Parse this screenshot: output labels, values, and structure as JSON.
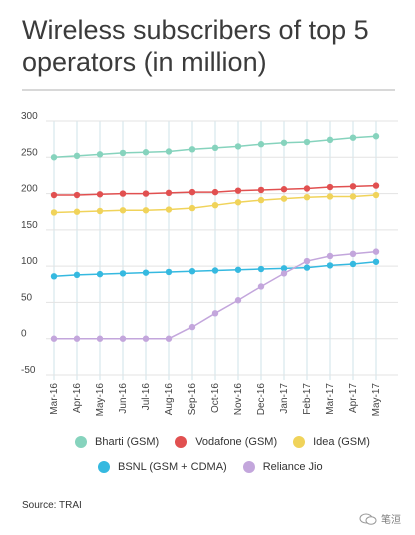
{
  "title": "Wireless subscribers of top 5 operators (in million)",
  "source": "Source: TRAI",
  "watermark": "笔洹",
  "chart_data": {
    "type": "line",
    "categories": [
      "Mar-16",
      "Apr-16",
      "May-16",
      "Jun-16",
      "Jul-16",
      "Aug-16",
      "Sep-16",
      "Oct-16",
      "Nov-16",
      "Dec-16",
      "Jan-17",
      "Feb-17",
      "Mar-17",
      "Apr-17",
      "May-17"
    ],
    "ylim": [
      -50,
      300
    ],
    "yticks": [
      300,
      250,
      200,
      150,
      100,
      50,
      0,
      -50
    ],
    "grid": true,
    "legend_position": "bottom",
    "series": [
      {
        "name": "Bharti (GSM)",
        "color": "#86d3bd",
        "values": [
          250,
          252,
          254,
          256,
          257,
          258,
          261,
          263,
          265,
          268,
          270,
          271,
          274,
          277,
          279
        ]
      },
      {
        "name": "Vodafone (GSM)",
        "color": "#e15050",
        "values": [
          198,
          198,
          199,
          200,
          200,
          201,
          202,
          202,
          204,
          205,
          206,
          207,
          209,
          210,
          211
        ]
      },
      {
        "name": "Idea (GSM)",
        "color": "#f0d35a",
        "values": [
          174,
          175,
          176,
          177,
          177,
          178,
          180,
          184,
          188,
          191,
          193,
          195,
          196,
          196,
          198
        ]
      },
      {
        "name": "BSNL (GSM + CDMA)",
        "color": "#35b9e0",
        "values": [
          86,
          88,
          89,
          90,
          91,
          92,
          93,
          94,
          95,
          96,
          97,
          98,
          101,
          103,
          106
        ]
      },
      {
        "name": "Reliance Jio",
        "color": "#c3a6dc",
        "values": [
          0,
          0,
          0,
          0,
          0,
          0,
          16,
          35,
          53,
          72,
          90,
          107,
          114,
          117,
          120
        ]
      }
    ]
  }
}
